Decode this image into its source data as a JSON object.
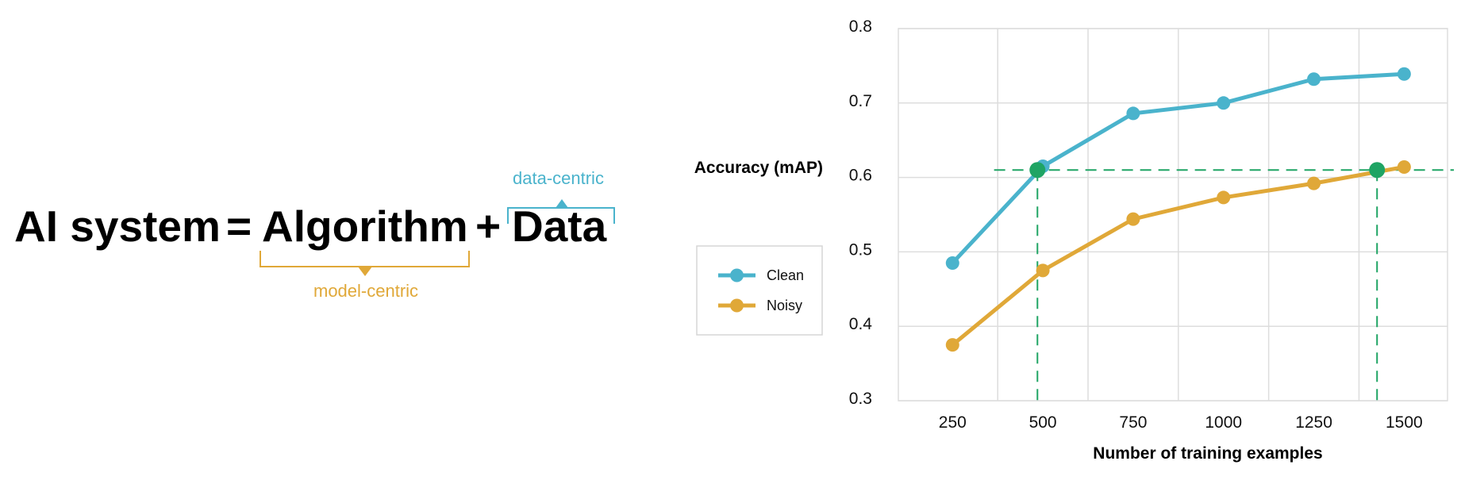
{
  "equation": {
    "ai_system": "AI system",
    "equals": "=",
    "algorithm": "Algorithm",
    "plus": "+",
    "data": "Data",
    "model_centric": "model-centric",
    "data_centric": "data-centric"
  },
  "colors": {
    "clean": "#4ab3cc",
    "noisy": "#e0a838",
    "marker": "#1fa464",
    "grid": "#dddddd"
  },
  "chart_data": {
    "type": "line",
    "ylabel": "Accuracy (mAP)",
    "xlabel": "Number of training examples",
    "xlim": [
      100,
      1620
    ],
    "ylim": [
      0.3,
      0.8
    ],
    "x_ticks": [
      250,
      500,
      750,
      1000,
      1250,
      1500
    ],
    "y_ticks": [
      0.3,
      0.4,
      0.5,
      0.6,
      0.7,
      0.8
    ],
    "grid": true,
    "legend": "left",
    "series": [
      {
        "name": "Clean",
        "x": [
          250,
          500,
          750,
          1000,
          1250,
          1500
        ],
        "y": [
          0.485,
          0.615,
          0.686,
          0.7,
          0.732,
          0.739
        ]
      },
      {
        "name": "Noisy",
        "x": [
          250,
          500,
          750,
          1000,
          1250,
          1500
        ],
        "y": [
          0.375,
          0.475,
          0.544,
          0.573,
          0.592,
          0.614
        ]
      }
    ],
    "reference": {
      "y": 0.61,
      "points": [
        {
          "x": 485,
          "y": 0.61
        },
        {
          "x": 1425,
          "y": 0.61
        }
      ]
    }
  }
}
